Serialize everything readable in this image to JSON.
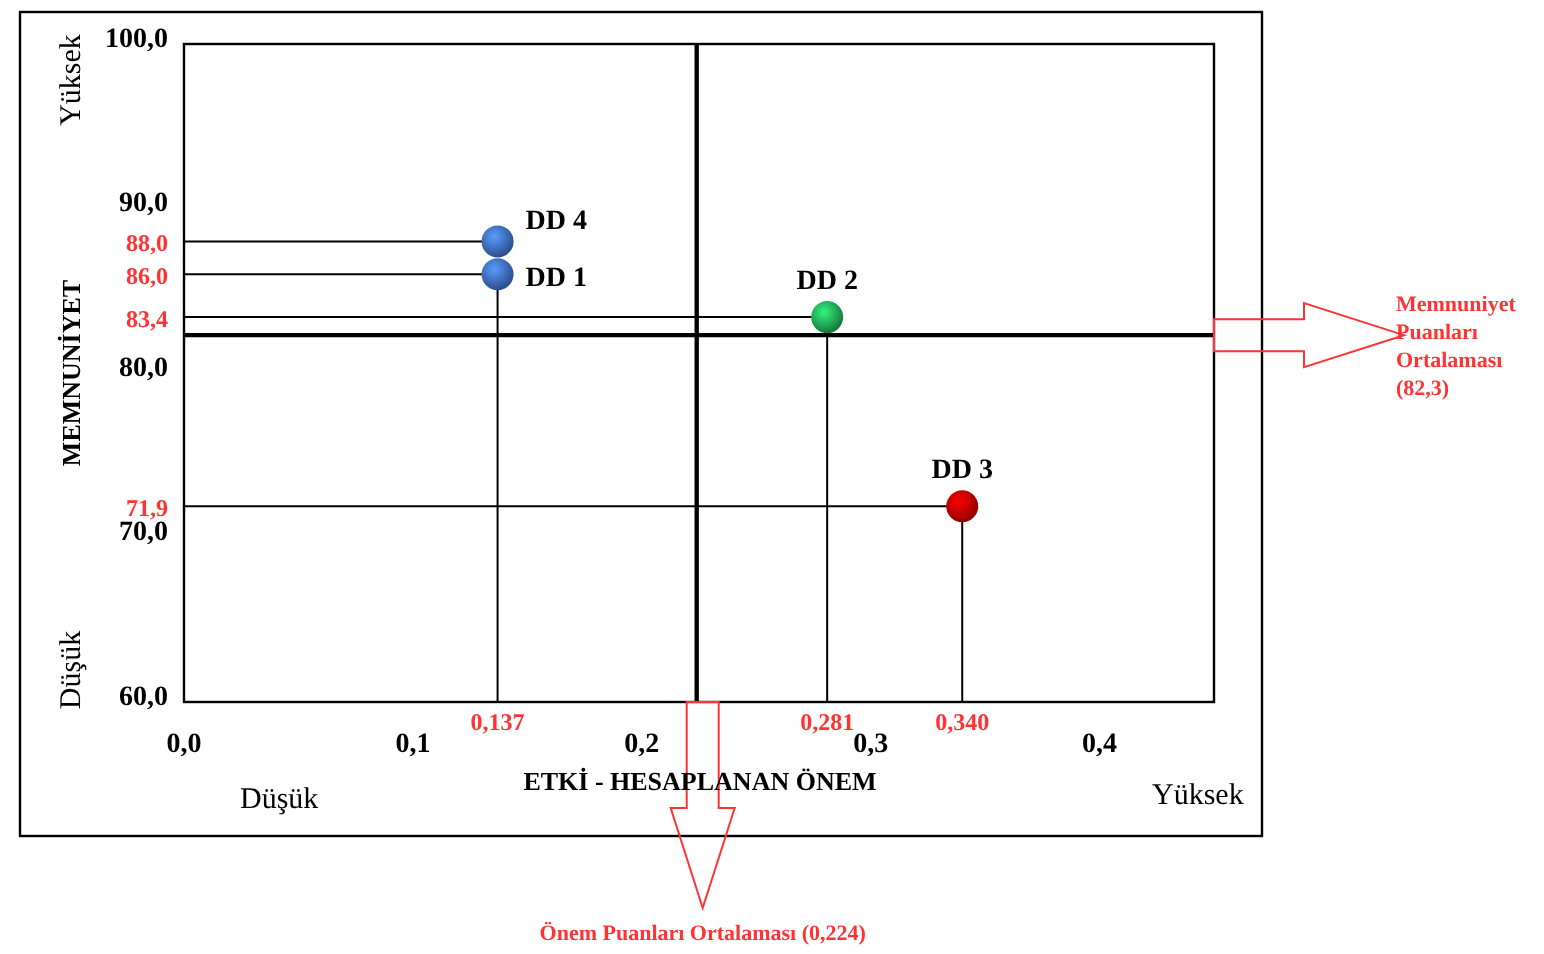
{
  "chart_data": {
    "type": "scatter",
    "xlabel": "ETKİ - HESAPLANAN ÖNEM",
    "ylabel": "MEMNUNİYET",
    "xlim": [
      0,
      0.45
    ],
    "ylim": [
      60,
      100
    ],
    "xticks": [
      {
        "value": 0,
        "label": "0,0"
      },
      {
        "value": 0.1,
        "label": "0,1"
      },
      {
        "value": 0.2,
        "label": "0,2"
      },
      {
        "value": 0.3,
        "label": "0,3"
      },
      {
        "value": 0.4,
        "label": "0,4"
      }
    ],
    "yticks": [
      {
        "value": 60,
        "label": "60,0"
      },
      {
        "value": 70,
        "label": "70,0"
      },
      {
        "value": 80,
        "label": "80,0"
      },
      {
        "value": 90,
        "label": "90,0"
      },
      {
        "value": 100,
        "label": "100,0"
      }
    ],
    "grid": false,
    "marker": "circle",
    "series": [
      {
        "name": "DD 1",
        "color": "#3a66b8",
        "x": [
          0.137
        ],
        "values": [
          86.0
        ],
        "value_labels": [
          "86,0"
        ]
      },
      {
        "name": "DD 2",
        "color": "#1fa050",
        "x": [
          0.281
        ],
        "values": [
          83.4
        ],
        "value_labels": [
          "83,4"
        ]
      },
      {
        "name": "DD 3",
        "color": "#c00000",
        "x": [
          0.34
        ],
        "values": [
          71.9
        ],
        "value_labels": [
          "71,9"
        ]
      },
      {
        "name": "DD 4",
        "color": "#3a66b8",
        "x": [
          0.137
        ],
        "values": [
          88.0
        ],
        "value_labels": [
          "88,0"
        ]
      }
    ],
    "ref_lines": [
      {
        "axis": "y",
        "value": 82.3,
        "color": "#000000"
      },
      {
        "axis": "x",
        "value": 0.224,
        "color": "#000000"
      }
    ],
    "annotations": [
      "Yüksek",
      "Düşük",
      "Düşük",
      "Yüksek",
      "Memnuniyet Puanları Ortalaması (82,3)",
      "Önem Puanları Ortalaması (0,224)",
      {
        "text": "0,137",
        "x": 0.137,
        "y": 86.0
      },
      {
        "text": "0,281",
        "x": 0.281,
        "y": 83.4
      },
      {
        "text": "0,340",
        "x": 0.34,
        "y": 71.9
      }
    ]
  }
}
